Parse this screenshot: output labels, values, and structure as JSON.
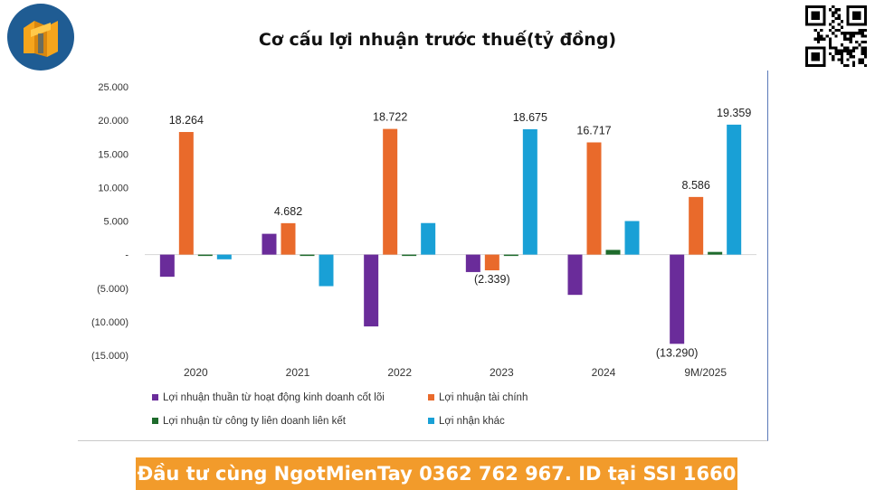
{
  "header": {
    "title": "Cơ cấu lợi nhuận trước thuế(tỷ đồng)"
  },
  "footer": {
    "banner_text": "Đầu tư cùng NgotMienTay 0362 762 967. ID tại SSI 1660"
  },
  "colors": {
    "core_business": "#6a2c9a",
    "financial": "#e96a2b",
    "joint_venture": "#1e6b2c",
    "other": "#19a0d6",
    "banner": "#f29b2b",
    "logo_bg": "#1f5c93",
    "logo_fg": "#f6a51c"
  },
  "icons": {
    "logo": "building-logo-icon",
    "qr": "qr-code-icon"
  },
  "chart_data": {
    "type": "bar",
    "title": "Cơ cấu lợi nhuận trước thuế(tỷ đồng)",
    "categories": [
      "2020",
      "2021",
      "2022",
      "2023",
      "2024",
      "9M/2025"
    ],
    "ylim": [
      -15000,
      25000
    ],
    "y_ticks": [
      25000,
      20000,
      15000,
      10000,
      5000,
      0,
      -5000,
      -10000,
      -15000
    ],
    "y_tick_labels": [
      "25.000",
      "20.000",
      "15.000",
      "10.000",
      "5.000",
      "-",
      "(5.000)",
      "(10.000)",
      "(15.000)"
    ],
    "grid": false,
    "legend_position": "bottom",
    "series": [
      {
        "name": "Lợi nhuận thuần từ hoạt động kinh doanh cốt lõi",
        "color": "#6a2c9a",
        "values": [
          -3300,
          3100,
          -10700,
          -2600,
          -6000,
          -13290
        ]
      },
      {
        "name": "Lợi nhuận tài chính",
        "color": "#e96a2b",
        "values": [
          18264,
          4682,
          18722,
          -2339,
          16717,
          8586
        ]
      },
      {
        "name": "Lợi nhuận từ công ty liên doanh liên kết",
        "color": "#1e6b2c",
        "values": [
          -200,
          -100,
          -100,
          -100,
          700,
          400
        ]
      },
      {
        "name": "Lợi nhận khác",
        "color": "#19a0d6",
        "values": [
          -700,
          -4700,
          4700,
          18675,
          5000,
          19359
        ]
      }
    ],
    "data_labels": [
      {
        "category": "2020",
        "text": "18.264"
      },
      {
        "category": "2021",
        "text": "4.682"
      },
      {
        "category": "2022",
        "text": "18.722"
      },
      {
        "category": "2023",
        "text": "18.675"
      },
      {
        "category": "2023",
        "text": "(2.339)"
      },
      {
        "category": "2024",
        "text": "16.717"
      },
      {
        "category": "9M/2025",
        "text": "8.586"
      },
      {
        "category": "9M/2025",
        "text": "19.359"
      },
      {
        "category": "9M/2025",
        "text": "(13.290)"
      }
    ]
  }
}
